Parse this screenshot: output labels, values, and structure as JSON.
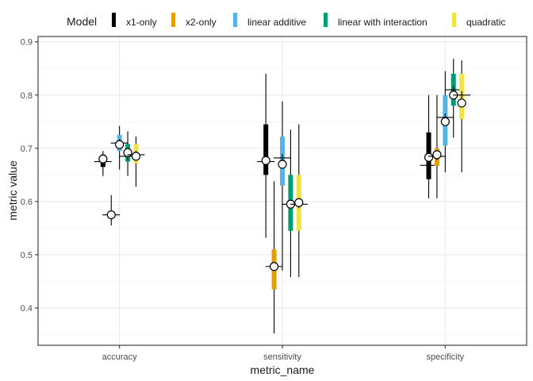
{
  "chart_data": {
    "type": "interval",
    "xlabel": "metric_name",
    "ylabel": "metric value",
    "categories": [
      "accuracy",
      "sensitivity",
      "specificity"
    ],
    "ylim": [
      0.33,
      0.91
    ],
    "yticks": [
      0.4,
      0.5,
      0.6,
      0.7,
      0.8,
      0.9
    ],
    "ytick_labels": [
      "0.4",
      "0.5",
      "0.6",
      "0.7",
      "0.8",
      "0.9"
    ],
    "grid": true,
    "legend": {
      "title": "Model",
      "position": "top"
    },
    "series": [
      {
        "name": "x1-only",
        "color": "#000000",
        "median": [
          0.675,
          0.675,
          0.668
        ],
        "mean": [
          0.68,
          0.677,
          0.683
        ],
        "q_low": [
          0.665,
          0.65,
          0.642
        ],
        "q_high": [
          0.688,
          0.745,
          0.73
        ],
        "min": [
          0.648,
          0.532,
          0.606
        ],
        "max": [
          0.695,
          0.84,
          0.8
        ]
      },
      {
        "name": "x2-only",
        "color": "#E69F00",
        "median": [
          0.575,
          0.478,
          0.685
        ],
        "mean": [
          0.575,
          0.478,
          0.688
        ],
        "q_low": [
          0.568,
          0.435,
          0.667
        ],
        "q_high": [
          0.582,
          0.51,
          0.7
        ],
        "min": [
          0.555,
          0.352,
          0.606
        ],
        "max": [
          0.612,
          0.638,
          0.8
        ]
      },
      {
        "name": "linear additive",
        "color": "#56B4E9",
        "median": [
          0.71,
          0.682,
          0.758
        ],
        "mean": [
          0.707,
          0.67,
          0.75
        ],
        "q_low": [
          0.695,
          0.63,
          0.705
        ],
        "q_high": [
          0.725,
          0.722,
          0.8
        ],
        "min": [
          0.66,
          0.47,
          0.655
        ],
        "max": [
          0.742,
          0.788,
          0.845
        ]
      },
      {
        "name": "linear with interaction",
        "color": "#009E73",
        "median": [
          0.685,
          0.595,
          0.81
        ],
        "mean": [
          0.692,
          0.595,
          0.8
        ],
        "q_low": [
          0.675,
          0.545,
          0.78
        ],
        "q_high": [
          0.708,
          0.65,
          0.84
        ],
        "min": [
          0.648,
          0.458,
          0.72
        ],
        "max": [
          0.732,
          0.735,
          0.868
        ]
      },
      {
        "name": "quadratic",
        "color": "#F0E442",
        "median": [
          0.688,
          0.595,
          0.8
        ],
        "mean": [
          0.685,
          0.598,
          0.785
        ],
        "q_low": [
          0.672,
          0.545,
          0.755
        ],
        "q_high": [
          0.708,
          0.65,
          0.84
        ],
        "min": [
          0.628,
          0.458,
          0.655
        ],
        "max": [
          0.722,
          0.745,
          0.865
        ]
      }
    ]
  }
}
